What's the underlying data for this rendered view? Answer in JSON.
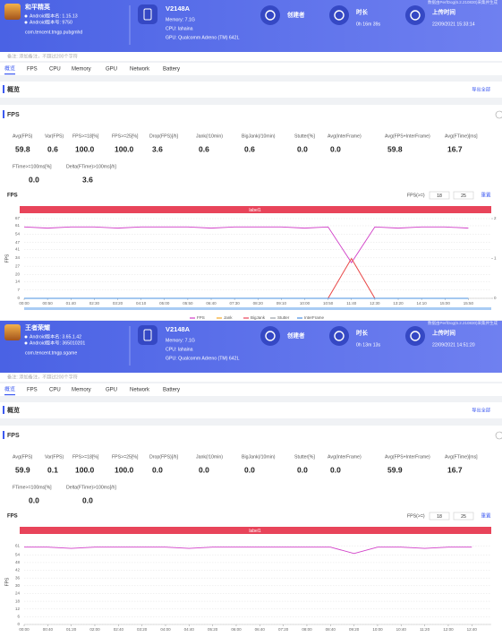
{
  "reports": [
    {
      "source": "数据由PerfDog(6.2.210830)采集并生成",
      "app": {
        "name": "和平精英",
        "version_name": "Android版本名: 1.15.13",
        "version_code": "Android版本号: 9750",
        "package": "com.tencent.tmgp.pubgmhd"
      },
      "device": {
        "model": "V2148A",
        "memory": "Memory: 7.1G",
        "cpu": "CPU: lahaina",
        "gpu": "GPU: Qualcomm Adreno (TM) 642L"
      },
      "creator": {
        "label": "创建者"
      },
      "duration": {
        "label": "时长",
        "value": "0h 16m 39s"
      },
      "upload_time": {
        "label": "上传时间",
        "value": "22/09/2021 15:33:14"
      },
      "note": "备注: 添加备注，不超过200个字符",
      "tabs": [
        "概览",
        "FPS",
        "CPU",
        "Memory",
        "GPU",
        "Network",
        "Battery"
      ],
      "overview": {
        "title": "概览",
        "export": "导出全部"
      },
      "fps_panel": {
        "title": "FPS",
        "metrics": [
          {
            "label": "Avg(FPS)",
            "value": "59.8"
          },
          {
            "label": "Var(FPS)",
            "value": "0.6"
          },
          {
            "label": "FPS>=18[%]",
            "value": "100.0"
          },
          {
            "label": "FPS>=25[%]",
            "value": "100.0"
          },
          {
            "label": "Drop(FPS)[/h]",
            "value": "3.6"
          },
          {
            "label": "Jank(/10min)",
            "value": "0.6"
          },
          {
            "label": "BigJank(/10min)",
            "value": "0.6"
          },
          {
            "label": "Stutter[%]",
            "value": "0.0"
          },
          {
            "label": "Avg(InterFrame)",
            "value": "0.0"
          },
          {
            "label": "Avg(FPS+InterFrame)",
            "value": "59.8"
          },
          {
            "label": "Avg(FTime)[ms]",
            "value": "16.7"
          },
          {
            "label": "FTime>=100ms[%]",
            "value": "0.0"
          },
          {
            "label": "Delta(FTime)>100ms[/h]",
            "value": "3.6"
          }
        ]
      },
      "chart": {
        "type": "line",
        "title": "FPS",
        "ylabel": "FPS",
        "threshold_label": "FPS(>=)",
        "thresholds": [
          18,
          25
        ],
        "reset": "重置",
        "band_label": "label1",
        "x": [
          0,
          50,
          100,
          150,
          200,
          250,
          300,
          350,
          400,
          450,
          500,
          550,
          600,
          650,
          700,
          750,
          800,
          850,
          900,
          950
        ],
        "xticks": [
          {
            "value": 0,
            "label": "00:00"
          },
          {
            "value": 50,
            "label": "00:50"
          },
          {
            "value": 100,
            "label": "01:40"
          },
          {
            "value": 150,
            "label": "02:30"
          },
          {
            "value": 200,
            "label": "03:20"
          },
          {
            "value": 250,
            "label": "04:10"
          },
          {
            "value": 300,
            "label": "05:00"
          },
          {
            "value": 350,
            "label": "05:50"
          },
          {
            "value": 400,
            "label": "06:40"
          },
          {
            "value": 450,
            "label": "07:30"
          },
          {
            "value": 500,
            "label": "08:20"
          },
          {
            "value": 550,
            "label": "09:10"
          },
          {
            "value": 600,
            "label": "10:00"
          },
          {
            "value": 650,
            "label": "10:50"
          },
          {
            "value": 700,
            "label": "11:40"
          },
          {
            "value": 750,
            "label": "12:30"
          },
          {
            "value": 800,
            "label": "13:20"
          },
          {
            "value": 850,
            "label": "14:10"
          },
          {
            "value": 900,
            "label": "15:00"
          },
          {
            "value": 950,
            "label": "15:50"
          }
        ],
        "xlim": [
          0,
          999
        ],
        "ylim": [
          0,
          67
        ],
        "yticks": [
          0,
          7,
          14,
          20,
          27,
          34,
          41,
          47,
          54,
          61,
          67
        ],
        "y2lim": [
          0,
          2
        ],
        "y2ticks": [
          0,
          1,
          2
        ],
        "grid": true,
        "series": [
          {
            "name": "FPS",
            "color": "#d13fc8",
            "values": [
              60,
              59,
              60,
              60,
              59,
              60,
              60,
              60,
              59,
              60,
              60,
              60,
              59,
              60,
              30,
              60,
              59,
              60,
              60,
              59
            ]
          },
          {
            "name": "Jank",
            "color": "#f5a623",
            "axis": "y2",
            "values": [
              0,
              0,
              0,
              0,
              0,
              0,
              0,
              0,
              0,
              0,
              0,
              0,
              0,
              0,
              1,
              0,
              0,
              0,
              0,
              0
            ]
          },
          {
            "name": "BigJank",
            "color": "#e8445a",
            "axis": "y2",
            "values": [
              0,
              0,
              0,
              0,
              0,
              0,
              0,
              0,
              0,
              0,
              0,
              0,
              0,
              0,
              1,
              0,
              0,
              0,
              0,
              0
            ]
          },
          {
            "name": "Stutter",
            "color": "#9aa0a6",
            "axis": "y2",
            "values": [
              0,
              0,
              0,
              0,
              0,
              0,
              0,
              0,
              0,
              0,
              0,
              0,
              0,
              0,
              0,
              0,
              0,
              0,
              0,
              0
            ]
          },
          {
            "name": "InterFrame",
            "color": "#4a90e2",
            "values": [
              0,
              0,
              0,
              0,
              0,
              0,
              0,
              0,
              0,
              0,
              0,
              0,
              0,
              0,
              0,
              0,
              0,
              0,
              0,
              0
            ]
          }
        ]
      }
    },
    {
      "source": "数据由PerfDog(6.2.210830)采集并生成",
      "app": {
        "name": "王者荣耀",
        "version_name": "Android版本名: 3.65.1.42",
        "version_code": "Android版本号: 365010201",
        "package": "com.tencent.tmgp.sgame"
      },
      "device": {
        "model": "V2148A",
        "memory": "Memory: 7.1G",
        "cpu": "CPU: lahaina",
        "gpu": "GPU: Qualcomm Adreno (TM) 642L"
      },
      "creator": {
        "label": "创建者"
      },
      "duration": {
        "label": "时长",
        "value": "0h 13m 13s"
      },
      "upload_time": {
        "label": "上传时间",
        "value": "22/09/2021 14:51:20"
      },
      "note": "备注: 添加备注，不超过200个字符",
      "tabs": [
        "概览",
        "FPS",
        "CPU",
        "Memory",
        "GPU",
        "Network",
        "Battery"
      ],
      "overview": {
        "title": "概览",
        "export": "导出全部"
      },
      "fps_panel": {
        "title": "FPS",
        "metrics": [
          {
            "label": "Avg(FPS)",
            "value": "59.9"
          },
          {
            "label": "Var(FPS)",
            "value": "0.1"
          },
          {
            "label": "FPS>=18[%]",
            "value": "100.0"
          },
          {
            "label": "FPS>=25[%]",
            "value": "100.0"
          },
          {
            "label": "Drop(FPS)[/h]",
            "value": "0.0"
          },
          {
            "label": "Jank(/10min)",
            "value": "0.0"
          },
          {
            "label": "BigJank(/10min)",
            "value": "0.0"
          },
          {
            "label": "Stutter[%]",
            "value": "0.0"
          },
          {
            "label": "Avg(InterFrame)",
            "value": "0.0"
          },
          {
            "label": "Avg(FPS+InterFrame)",
            "value": "59.9"
          },
          {
            "label": "Avg(FTime)[ms]",
            "value": "16.7"
          },
          {
            "label": "FTime>=100ms[%]",
            "value": "0.0"
          },
          {
            "label": "Delta(FTime)>100ms[/h]",
            "value": "0.0"
          }
        ]
      },
      "chart": {
        "type": "line",
        "title": "FPS",
        "ylabel": "FPS",
        "threshold_label": "FPS(>=)",
        "thresholds": [
          18,
          25
        ],
        "reset": "重置",
        "band_label": "label1",
        "x": [
          0,
          40,
          80,
          120,
          160,
          200,
          240,
          280,
          320,
          360,
          400,
          440,
          480,
          520,
          560,
          600,
          640,
          680,
          720,
          760
        ],
        "xticks": [
          {
            "value": 0,
            "label": "00:00"
          },
          {
            "value": 40,
            "label": "00:40"
          },
          {
            "value": 80,
            "label": "01:20"
          },
          {
            "value": 120,
            "label": "02:00"
          },
          {
            "value": 160,
            "label": "02:40"
          },
          {
            "value": 200,
            "label": "03:20"
          },
          {
            "value": 240,
            "label": "04:00"
          },
          {
            "value": 280,
            "label": "04:40"
          },
          {
            "value": 320,
            "label": "05:20"
          },
          {
            "value": 360,
            "label": "06:00"
          },
          {
            "value": 400,
            "label": "06:40"
          },
          {
            "value": 440,
            "label": "07:20"
          },
          {
            "value": 480,
            "label": "08:00"
          },
          {
            "value": 520,
            "label": "08:40"
          },
          {
            "value": 560,
            "label": "09:20"
          },
          {
            "value": 600,
            "label": "10:00"
          },
          {
            "value": 640,
            "label": "10:40"
          },
          {
            "value": 680,
            "label": "11:20"
          },
          {
            "value": 720,
            "label": "12:00"
          },
          {
            "value": 760,
            "label": "12:40"
          }
        ],
        "xlim": [
          0,
          793
        ],
        "ylim": [
          0,
          66
        ],
        "yticks": [
          0,
          6,
          12,
          18,
          24,
          30,
          36,
          42,
          48,
          54,
          61
        ],
        "grid": true,
        "color": "#d13fc8",
        "values": [
          60,
          60,
          59,
          60,
          60,
          60,
          60,
          59,
          60,
          60,
          60,
          60,
          60,
          60,
          55,
          60,
          60,
          59,
          60,
          60
        ]
      }
    }
  ]
}
